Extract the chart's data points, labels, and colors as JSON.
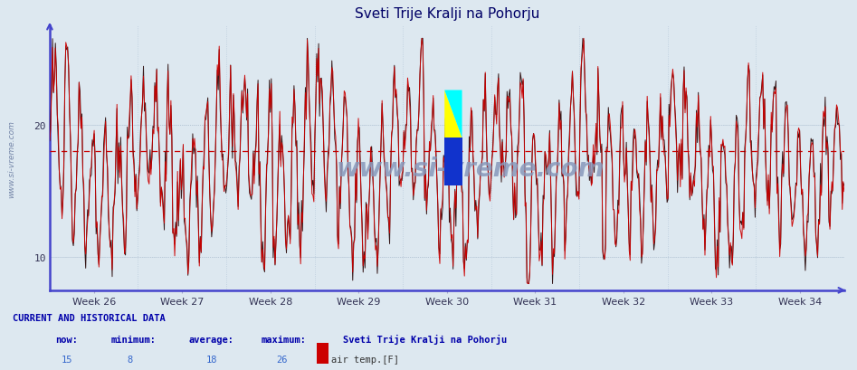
{
  "title": "Sveti Trije Kralji na Pohorju",
  "x_labels": [
    "Week 26",
    "Week 27",
    "Week 28",
    "Week 29",
    "Week 30",
    "Week 31",
    "Week 32",
    "Week 33",
    "Week 34"
  ],
  "y_ticks": [
    10,
    20
  ],
  "y_min": 7.5,
  "y_max": 27.5,
  "average_line": 18,
  "avg_line_color": "#cc0000",
  "line_color": "#cc0000",
  "dark_line_color": "#220000",
  "bg_color": "#dde8f0",
  "plot_bg_color": "#dde8f0",
  "grid_color": "#ffffff",
  "axis_color": "#4444cc",
  "title_color": "#000066",
  "watermark": "www.si-vreme.com",
  "watermark_color": "#8899bb",
  "footer_label": "CURRENT AND HISTORICAL DATA",
  "footer_now": "15",
  "footer_min": "8",
  "footer_avg": "18",
  "footer_max": "26",
  "footer_station": "Sveti Trije Kralji na Pohorju",
  "footer_legend": "air temp.[F]",
  "legend_color": "#cc0000",
  "num_points": 840
}
